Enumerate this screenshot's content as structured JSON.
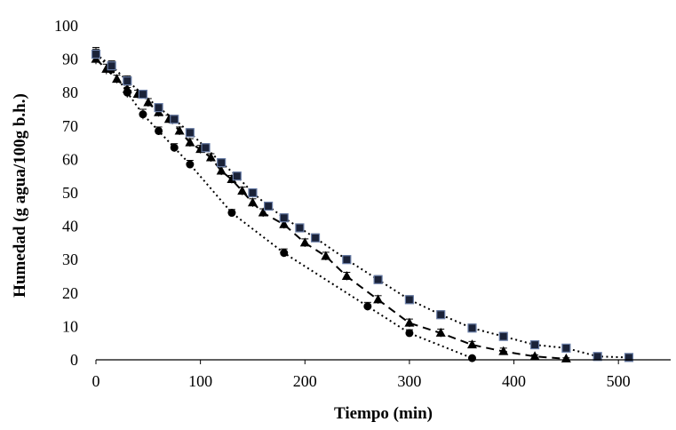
{
  "chart_data": {
    "type": "scatter",
    "title": "",
    "xlabel": "Tiempo (min)",
    "ylabel": "Humedad  (g agua/100g b.h.)",
    "xlim": [
      0,
      550
    ],
    "ylim": [
      0,
      100
    ],
    "x_ticks": [
      0,
      100,
      200,
      300,
      400,
      500
    ],
    "y_ticks": [
      0,
      10,
      20,
      30,
      40,
      50,
      60,
      70,
      80,
      90,
      100
    ],
    "grid": false,
    "legend": "none",
    "series": [
      {
        "marker": "circle",
        "line": "dotted",
        "color": "#000000",
        "x": [
          0,
          15,
          30,
          45,
          60,
          75,
          90,
          130,
          180,
          260,
          300,
          360
        ],
        "y": [
          91.5,
          87,
          80,
          73.5,
          68.5,
          63.5,
          58.5,
          44,
          32,
          16,
          8,
          0.5
        ],
        "err": [
          2,
          1.5,
          1.5,
          1.5,
          1.2,
          1.2,
          1.2,
          1,
          1.2,
          1.2,
          1,
          0.3
        ]
      },
      {
        "marker": "triangle",
        "line": "dashed",
        "color": "#000000",
        "x": [
          0,
          10,
          20,
          30,
          40,
          50,
          60,
          70,
          80,
          90,
          100,
          110,
          120,
          130,
          140,
          150,
          160,
          180,
          200,
          220,
          240,
          270,
          300,
          330,
          360,
          390,
          420,
          450
        ],
        "y": [
          90,
          87,
          84,
          81,
          79.5,
          77,
          74,
          72,
          68.5,
          65,
          63,
          60.5,
          56.5,
          54,
          50.5,
          47,
          44,
          40.5,
          35,
          31,
          25,
          18,
          11,
          8,
          4.5,
          2.5,
          1,
          0.3
        ],
        "err": [
          1.5,
          1.5,
          1.2,
          1.2,
          1.2,
          1.2,
          1.2,
          1.2,
          1.2,
          1.2,
          1.2,
          1.2,
          1.2,
          1.2,
          1.2,
          1.2,
          1.2,
          1.2,
          1.2,
          1.2,
          1.2,
          1.2,
          1.2,
          1.2,
          1,
          1,
          0.5,
          0.3
        ]
      },
      {
        "marker": "square",
        "line": "dotted",
        "color": "#1a2238",
        "x": [
          0,
          15,
          30,
          45,
          60,
          75,
          90,
          105,
          120,
          135,
          150,
          165,
          180,
          195,
          210,
          240,
          270,
          300,
          330,
          360,
          390,
          420,
          450,
          480,
          510
        ],
        "y": [
          91.5,
          88,
          83.5,
          79.5,
          75.5,
          72,
          68,
          63.5,
          59,
          55,
          50,
          46,
          42.5,
          39.5,
          36.5,
          30,
          24,
          18,
          13.5,
          9.5,
          7,
          4.5,
          3.5,
          1,
          0.7
        ],
        "err": [
          1.5,
          1.5,
          1.5,
          1.2,
          1.2,
          1.2,
          1.2,
          1.2,
          1.2,
          1.2,
          1.2,
          1.2,
          1.2,
          1.2,
          1.2,
          1.2,
          1.2,
          1.2,
          1.2,
          1.2,
          1.2,
          1,
          0.5,
          0.5,
          0.3
        ]
      }
    ]
  }
}
